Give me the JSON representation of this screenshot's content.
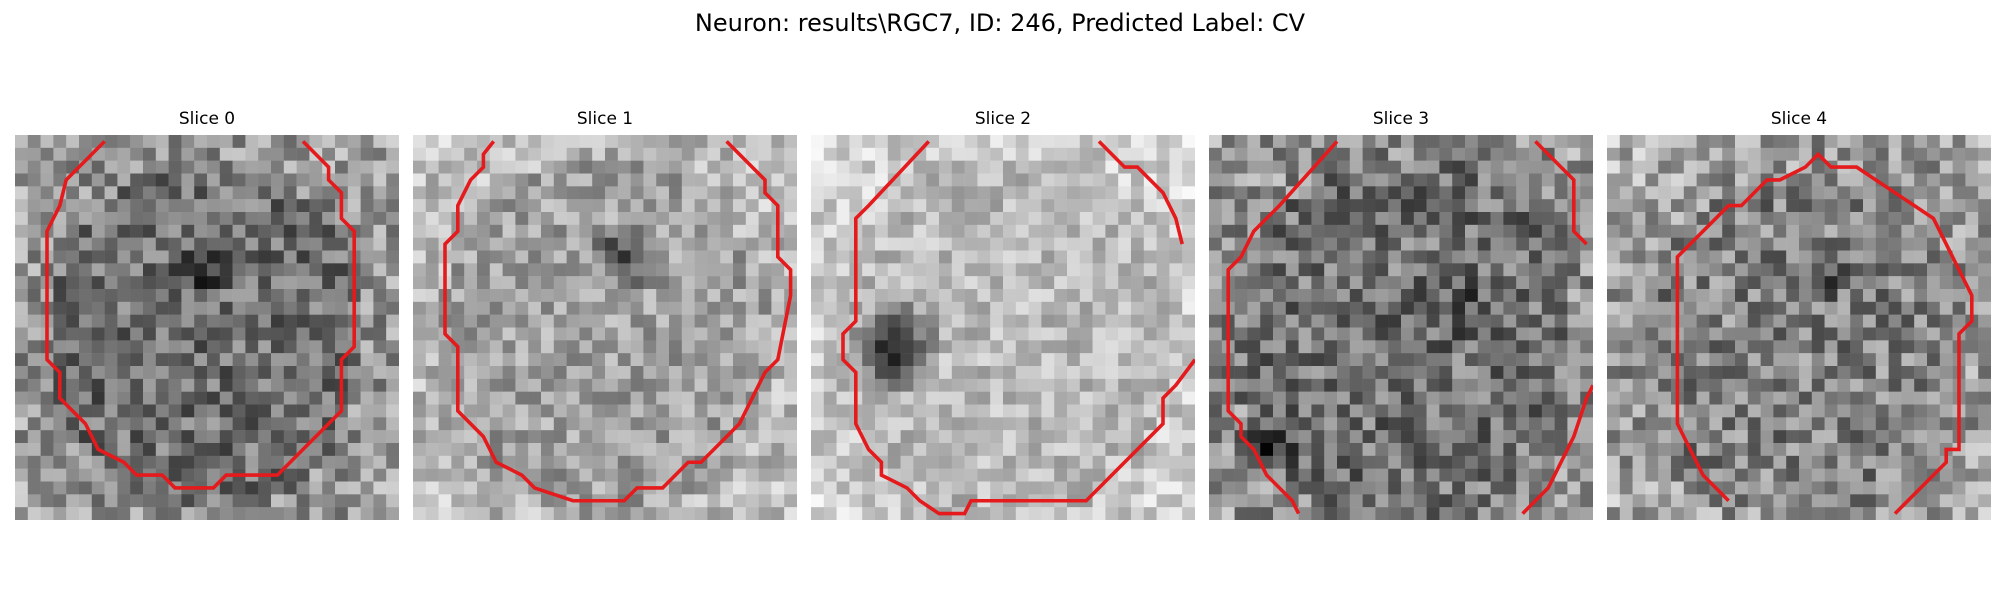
{
  "figure": {
    "title": "Neuron: results\\RGC7, ID: 246, Predicted Label: CV",
    "contour_color": "#e41a1c"
  },
  "panels": [
    {
      "title": "Slice 0"
    },
    {
      "title": "Slice 1"
    },
    {
      "title": "Slice 2"
    },
    {
      "title": "Slice 3"
    },
    {
      "title": "Slice 4"
    }
  ]
}
